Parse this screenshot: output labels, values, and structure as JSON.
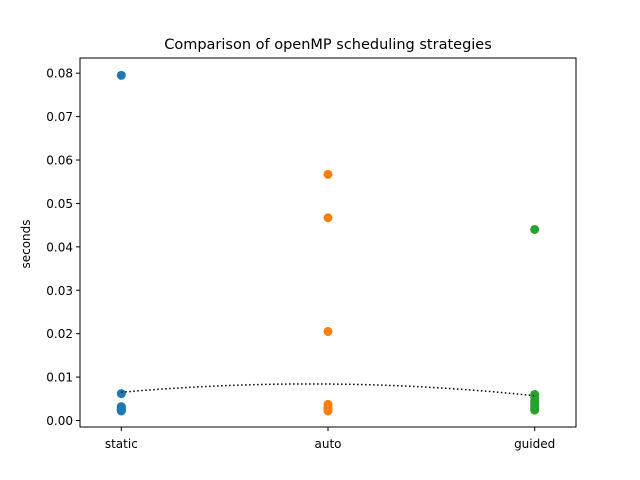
{
  "chart_data": {
    "type": "scatter",
    "title": "Comparison of openMP scheduling strategies",
    "xlabel": "",
    "ylabel": "seconds",
    "categories": [
      "static",
      "auto",
      "guided"
    ],
    "ylim": [
      -0.0015,
      0.0835
    ],
    "yticks": [
      0.0,
      0.01,
      0.02,
      0.03,
      0.04,
      0.05,
      0.06,
      0.07,
      0.08
    ],
    "ytick_labels": [
      "0.00",
      "0.01",
      "0.02",
      "0.03",
      "0.04",
      "0.05",
      "0.06",
      "0.07",
      "0.08"
    ],
    "grid": false,
    "legend": "none",
    "series": [
      {
        "category": "static",
        "color": "#1f77b4",
        "values": [
          0.0795,
          0.0062,
          0.0032,
          0.003,
          0.0028,
          0.0026,
          0.0025,
          0.0024,
          0.0023,
          0.0022
        ]
      },
      {
        "category": "auto",
        "color": "#ff7f0e",
        "values": [
          0.0567,
          0.0467,
          0.0205,
          0.0037,
          0.0032,
          0.0028,
          0.0025,
          0.0023,
          0.0022
        ]
      },
      {
        "category": "guided",
        "color": "#2ca02c",
        "values": [
          0.044,
          0.006,
          0.0052,
          0.0045,
          0.004,
          0.0035,
          0.003,
          0.0027,
          0.0024
        ]
      }
    ],
    "mean_line": {
      "style": "dotted",
      "color": "#000000",
      "values": [
        0.0065,
        0.0084,
        0.0057
      ]
    }
  }
}
